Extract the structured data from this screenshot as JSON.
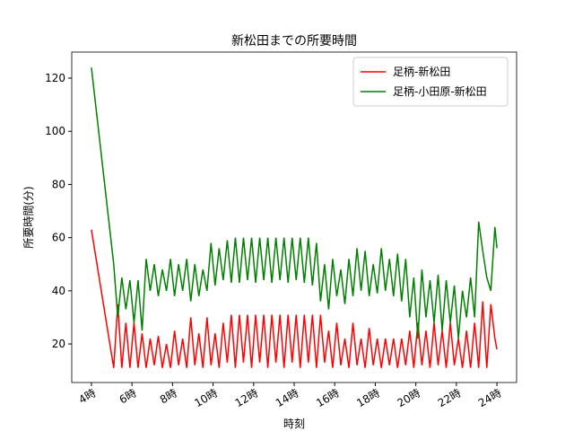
{
  "chart_data": {
    "type": "line",
    "title": "新松田までの所要時間",
    "x_label": "時刻",
    "y_label": "所要時間(分)",
    "x": [
      4,
      5.1,
      5.3,
      5.5,
      5.7,
      5.9,
      6.1,
      6.3,
      6.5,
      6.7,
      6.9,
      7.1,
      7.3,
      7.5,
      7.7,
      7.9,
      8.1,
      8.3,
      8.5,
      8.7,
      8.9,
      9.1,
      9.3,
      9.5,
      9.7,
      9.9,
      10.1,
      10.3,
      10.5,
      10.7,
      10.9,
      11.1,
      11.3,
      11.5,
      11.7,
      11.9,
      12.1,
      12.3,
      12.5,
      12.7,
      12.9,
      13.1,
      13.3,
      13.5,
      13.7,
      13.9,
      14.1,
      14.3,
      14.5,
      14.7,
      14.9,
      15.1,
      15.3,
      15.5,
      15.7,
      15.9,
      16.1,
      16.3,
      16.5,
      16.7,
      16.9,
      17.1,
      17.3,
      17.5,
      17.7,
      17.9,
      18.1,
      18.3,
      18.5,
      18.7,
      18.9,
      19.1,
      19.3,
      19.5,
      19.7,
      19.9,
      20.1,
      20.3,
      20.5,
      20.7,
      20.9,
      21.1,
      21.3,
      21.5,
      21.7,
      21.9,
      22.1,
      22.3,
      22.5,
      22.7,
      22.9,
      23.1,
      23.3,
      23.5,
      23.7,
      23.9,
      24
    ],
    "series": [
      {
        "name": "足柄-新松田",
        "color": "#ff0000",
        "values": [
          63,
          11,
          35,
          11,
          28,
          11,
          28,
          11,
          24,
          11,
          22,
          12,
          23,
          11,
          20,
          11,
          25,
          12,
          22,
          11,
          30,
          12,
          24,
          11,
          30,
          12,
          24,
          11,
          28,
          13,
          31,
          11,
          31,
          13,
          31,
          11,
          31,
          13,
          31,
          11,
          31,
          13,
          31,
          11,
          31,
          13,
          31,
          11,
          31,
          13,
          31,
          11,
          31,
          13,
          25,
          11,
          28,
          12,
          22,
          11,
          28,
          12,
          22,
          11,
          26,
          12,
          22,
          11,
          22,
          12,
          22,
          11,
          22,
          12,
          25,
          11,
          28,
          12,
          25,
          11,
          28,
          12,
          25,
          11,
          28,
          12,
          22,
          11,
          25,
          11,
          28,
          11,
          36,
          11,
          35,
          22,
          18
        ]
      },
      {
        "name": "足柄-小田原-新松田",
        "color": "#008000",
        "values": [
          124,
          50,
          30,
          45,
          33,
          44,
          28,
          44,
          25,
          52,
          40,
          50,
          38,
          48,
          40,
          52,
          38,
          50,
          40,
          52,
          36,
          50,
          38,
          48,
          40,
          58,
          42,
          56,
          44,
          59,
          43,
          60,
          43,
          60,
          44,
          60,
          43,
          60,
          44,
          60,
          43,
          60,
          44,
          60,
          43,
          60,
          44,
          60,
          43,
          60,
          42,
          58,
          36,
          50,
          33,
          52,
          38,
          48,
          35,
          52,
          38,
          56,
          40,
          55,
          38,
          50,
          39,
          56,
          40,
          52,
          38,
          54,
          36,
          52,
          30,
          45,
          22,
          48,
          30,
          44,
          28,
          46,
          25,
          44,
          28,
          42,
          22,
          40,
          30,
          45,
          30,
          66,
          55,
          45,
          40,
          64,
          56
        ]
      }
    ],
    "xlim": [
      3.03,
      24.97
    ],
    "ylim": [
      5.5,
      129.8
    ],
    "xticks": [
      {
        "value": 4,
        "label": "4時"
      },
      {
        "value": 6,
        "label": "6時"
      },
      {
        "value": 8,
        "label": "8時"
      },
      {
        "value": 10,
        "label": "10時"
      },
      {
        "value": 12,
        "label": "12時"
      },
      {
        "value": 14,
        "label": "14時"
      },
      {
        "value": 16,
        "label": "16時"
      },
      {
        "value": 18,
        "label": "18時"
      },
      {
        "value": 20,
        "label": "20時"
      },
      {
        "value": 22,
        "label": "22時"
      },
      {
        "value": 24,
        "label": "24時"
      }
    ],
    "yticks": [
      20,
      40,
      60,
      80,
      100,
      120
    ],
    "legend": "upper right"
  }
}
